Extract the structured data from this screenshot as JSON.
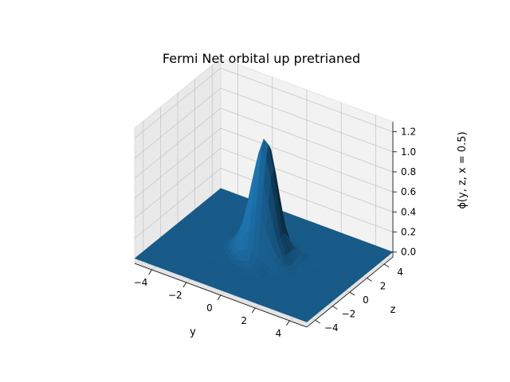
{
  "chart_data": {
    "type": "surface3d",
    "title": "Fermi Net orbital up pretrianed",
    "xlabel": "y",
    "ylabel": "z",
    "zlabel": "ϕ(y, z, x = 0.5)",
    "xlim": [
      -5,
      5
    ],
    "ylim": [
      -5,
      5
    ],
    "zlim": [
      -0.05,
      1.3
    ],
    "xticks": [
      "−4",
      "−2",
      "0",
      "2",
      "4"
    ],
    "yticks": [
      "−4",
      "−2",
      "0",
      "2",
      "4"
    ],
    "zticks": [
      "0.0",
      "0.2",
      "0.4",
      "0.6",
      "0.8",
      "1.0",
      "1.2"
    ],
    "grid": true,
    "surface_color": "#1f77b4",
    "peak": {
      "y": 0.0,
      "z": 0.0,
      "value": 1.2
    }
  }
}
